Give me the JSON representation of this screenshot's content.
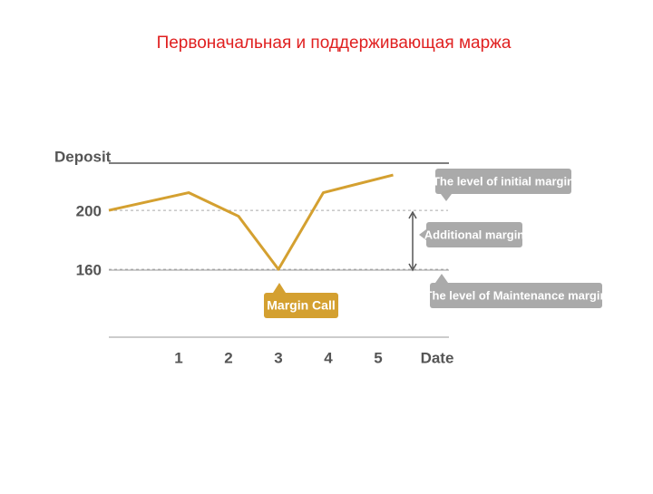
{
  "chart_data": {
    "type": "line",
    "title": "Первоначальная и поддерживающая маржа",
    "x_label": "Date",
    "y_label": "Deposit",
    "x": [
      -0.4,
      1.2,
      2.2,
      3.0,
      3.9,
      5.3
    ],
    "values": [
      200,
      212,
      196,
      160,
      212,
      224
    ],
    "color": "#d4a030",
    "xlim": [
      -0.4,
      6.4
    ],
    "xticks": [
      1,
      2,
      3,
      4,
      5
    ],
    "ylim": [
      114,
      232
    ],
    "yticks": [
      200,
      160
    ],
    "annotations": {
      "initial": "The level of initial margin",
      "additional": "Additional margin",
      "maintenance": "The level of Maintenance margin",
      "margin_call": "Margin Call"
    }
  }
}
